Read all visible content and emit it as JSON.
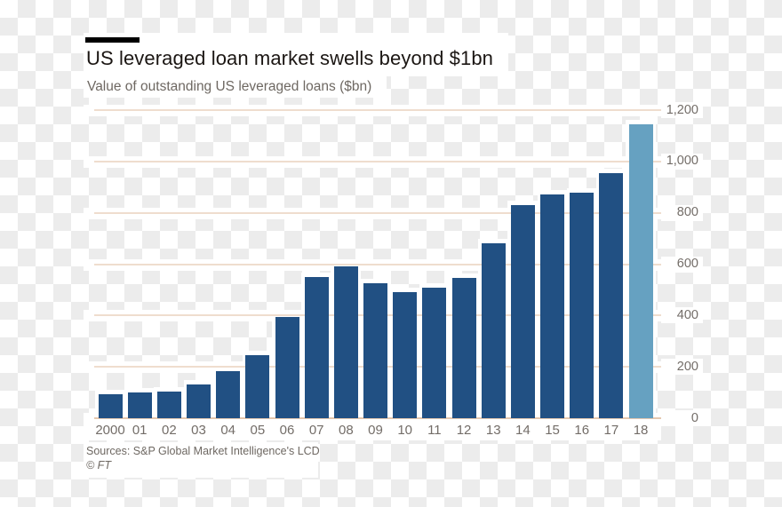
{
  "header": {
    "title": "US leveraged loan market swells beyond $1bn",
    "subtitle": "Value of outstanding US leveraged loans ($bn)",
    "kicker_bar_color": "#000000"
  },
  "chart_data": {
    "type": "bar",
    "title": "US leveraged loan market swells beyond $1bn",
    "subtitle": "Value of outstanding US leveraged loans ($bn)",
    "categories": [
      "2000",
      "01",
      "02",
      "03",
      "04",
      "05",
      "06",
      "07",
      "08",
      "09",
      "10",
      "11",
      "12",
      "13",
      "14",
      "15",
      "16",
      "17",
      "18"
    ],
    "values": [
      95,
      100,
      105,
      130,
      185,
      245,
      395,
      550,
      590,
      525,
      490,
      510,
      545,
      680,
      830,
      870,
      880,
      955,
      1145
    ],
    "xlabel": "",
    "ylabel": "",
    "ylim": [
      0,
      1200
    ],
    "yticks": [
      0,
      200,
      400,
      600,
      800,
      1000,
      1200
    ],
    "ytick_labels": [
      "0",
      "200",
      "400",
      "600",
      "800",
      "1,000",
      "1,200"
    ],
    "grid": true,
    "legend": "none",
    "yaxis_side": "right",
    "bar_color": "#215083",
    "highlight_color": "#66a1c1",
    "highlight_index": 18,
    "gridline_color": "#efddce",
    "axis_line_color": "#e5c8b0"
  },
  "footer": {
    "sources": "Sources: S&P Global Market Intelligence's LCD",
    "copyright": "© FT"
  }
}
